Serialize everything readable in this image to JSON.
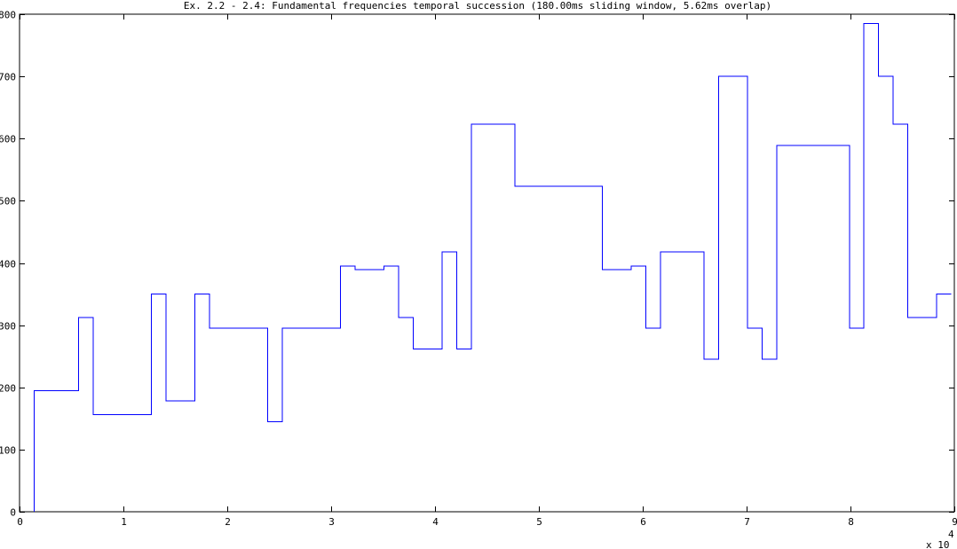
{
  "chart_data": {
    "type": "line",
    "style": "step",
    "title": "Ex. 2.2 - 2.4: Fundamental frequencies temporal succession (180.00ms sliding window, 5.62ms overlap)",
    "xlabel": "",
    "ylabel": "",
    "xlim": [
      0,
      90000
    ],
    "ylim": [
      0,
      800
    ],
    "x_ticks": [
      0,
      10000,
      20000,
      30000,
      40000,
      50000,
      60000,
      70000,
      80000,
      90000
    ],
    "x_tick_labels": [
      "0",
      "1",
      "2",
      "3",
      "4",
      "5",
      "6",
      "7",
      "8",
      "9"
    ],
    "x_exponent_base": "x 10",
    "x_exponent_power": "4",
    "y_ticks": [
      0,
      100,
      200,
      300,
      400,
      500,
      600,
      700,
      800
    ],
    "y_tick_labels": [
      "0",
      "100",
      "200",
      "300",
      "400",
      "500",
      "600",
      "700",
      "800"
    ],
    "grid": false,
    "line_color": "#0000ff",
    "series": [
      {
        "x": [
          1400,
          1400,
          5700,
          5700,
          7100,
          7100,
          12700,
          12700,
          14100,
          14100,
          16900,
          16900,
          18300,
          18300,
          23900,
          23900,
          25300,
          25300,
          30900,
          30900,
          32300,
          32300,
          35100,
          35100,
          36500,
          36500,
          37900,
          37900,
          40700,
          40700,
          42100,
          42100,
          43500,
          43500,
          47700,
          47700,
          56100,
          56100,
          58900,
          58900,
          60300,
          60300,
          61700,
          61700,
          65900,
          65900,
          67300,
          67300,
          70100,
          70100,
          71500,
          71500,
          72900,
          72900,
          79900,
          79900,
          81300,
          81300,
          82700,
          82700,
          84100,
          84100,
          85500,
          85500,
          88300,
          88300,
          89700
        ],
        "y": [
          0,
          195,
          195,
          312,
          312,
          156,
          156,
          350,
          350,
          178,
          178,
          350,
          350,
          295,
          295,
          145,
          145,
          295,
          295,
          395,
          395,
          389,
          389,
          395,
          395,
          312,
          312,
          262,
          262,
          418,
          418,
          262,
          262,
          623,
          623,
          523,
          523,
          389,
          389,
          395,
          395,
          295,
          295,
          418,
          418,
          245,
          245,
          700,
          700,
          295,
          295,
          245,
          245,
          589,
          589,
          295,
          295,
          785,
          785,
          700,
          700,
          623,
          623,
          312,
          312,
          350,
          350
        ]
      }
    ]
  }
}
